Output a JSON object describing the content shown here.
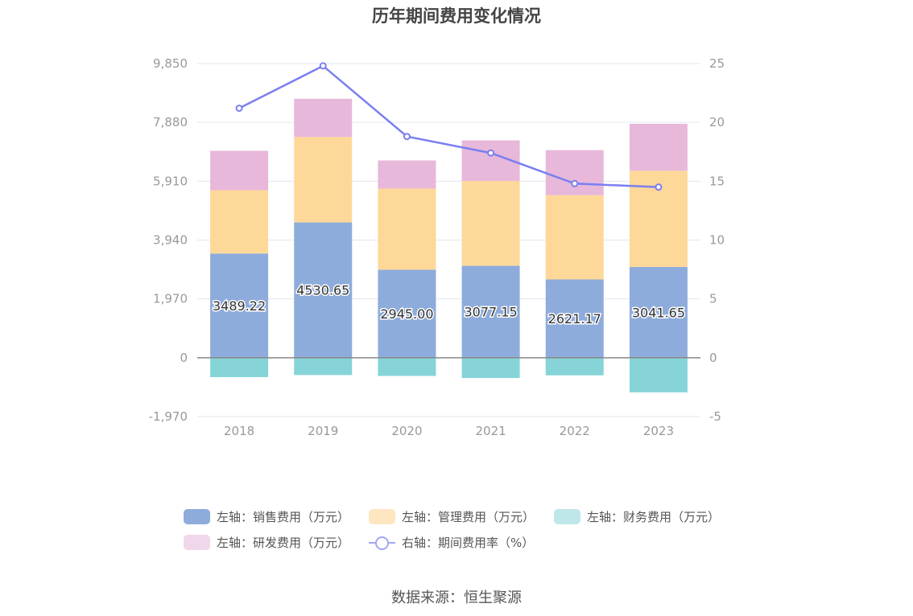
{
  "title": "历年期间费用变化情况",
  "source": "数据来源：恒生聚源",
  "legend": [
    {
      "label": "左轴：销售费用（万元）",
      "color": "#8eacdb",
      "kind": "box"
    },
    {
      "label": "左轴：管理费用（万元）",
      "color": "#fde6c0",
      "kind": "box"
    },
    {
      "label": "左轴：财务费用（万元）",
      "color": "#bfe7e9",
      "kind": "box"
    },
    {
      "label": "左轴：研发费用（万元）",
      "color": "#f1d7ea",
      "kind": "box"
    },
    {
      "label": "右轴：期间费用率（%）",
      "color": "#7b7fef",
      "kind": "line"
    }
  ],
  "colors": {
    "sales": "#8eacdb",
    "admin": "#fed899",
    "finance": "#86d4d8",
    "rnd": "#e7b8da",
    "line": "#7b7fef",
    "grid": "#e3e6f2",
    "zero_axis": "#888888",
    "tick_text": "#999999"
  },
  "chart_data": {
    "type": "bar",
    "stacked": true,
    "categories": [
      "2018",
      "2019",
      "2020",
      "2021",
      "2022",
      "2023"
    ],
    "series": [
      {
        "name": "左轴：销售费用（万元）",
        "axis": "left",
        "values": [
          3489.22,
          4530.65,
          2945.0,
          3077.15,
          2621.17,
          3041.65
        ],
        "data_labels": [
          "3489.22",
          "4530.65",
          "2945.00",
          "3077.15",
          "2621.17",
          "3041.65"
        ]
      },
      {
        "name": "左轴：管理费用（万元）",
        "axis": "left",
        "values": [
          2120,
          2860,
          2720,
          2840,
          2820,
          3220
        ]
      },
      {
        "name": "左轴：财务费用（万元）",
        "axis": "left",
        "values": [
          -650,
          -580,
          -610,
          -680,
          -590,
          -1160
        ]
      },
      {
        "name": "左轴：研发费用（万元）",
        "axis": "left",
        "values": [
          1320,
          1280,
          940,
          1360,
          1510,
          1570
        ]
      },
      {
        "name": "右轴：期间费用率（%）",
        "axis": "right",
        "type": "line",
        "values": [
          21.2,
          24.8,
          18.8,
          17.4,
          14.8,
          14.5
        ]
      }
    ],
    "left_axis": {
      "min": -1970,
      "max": 9850,
      "ticks": [
        "-1,970",
        "0",
        "1,970",
        "3,940",
        "5,910",
        "7,880",
        "9,850"
      ]
    },
    "right_axis": {
      "min": -5,
      "max": 25,
      "ticks": [
        "-5",
        "0",
        "5",
        "10",
        "15",
        "20",
        "25"
      ]
    },
    "grid": true,
    "legend_position": "bottom"
  }
}
